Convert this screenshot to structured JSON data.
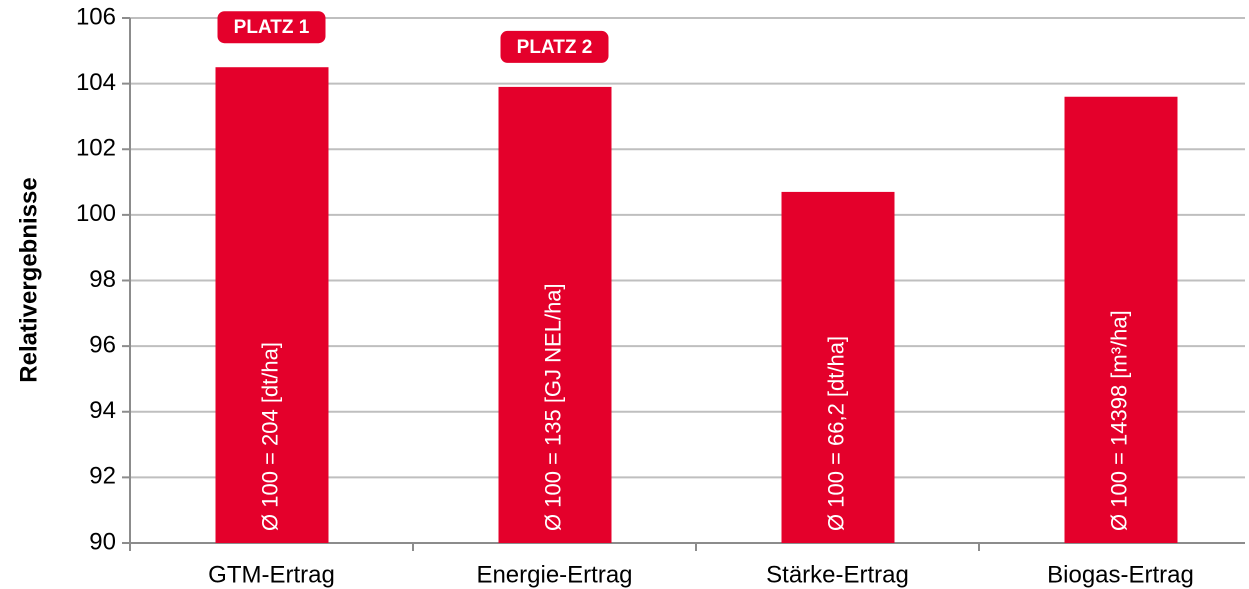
{
  "chart_data": {
    "type": "bar",
    "y_label": "Relativergebnisse",
    "categories": [
      "GTM-Ertrag",
      "Energie-Ertrag",
      "Stärke-Ertrag",
      "Biogas-Ertrag"
    ],
    "values": [
      104.5,
      103.9,
      100.7,
      103.6
    ],
    "bar_labels": [
      "Ø 100 = 204 [dt/ha]",
      "Ø 100 = 135 [GJ NEL/ha]",
      "Ø 100 = 66,2 [dt/ha]",
      "Ø 100 = 14398 [m³/ha]"
    ],
    "annotations": [
      "PLATZ 1",
      "PLATZ 2"
    ],
    "color": "#e4002b",
    "ylim": [
      90,
      106
    ],
    "yticks": [
      90,
      92,
      94,
      96,
      98,
      100,
      102,
      104,
      106
    ],
    "grid": true
  }
}
